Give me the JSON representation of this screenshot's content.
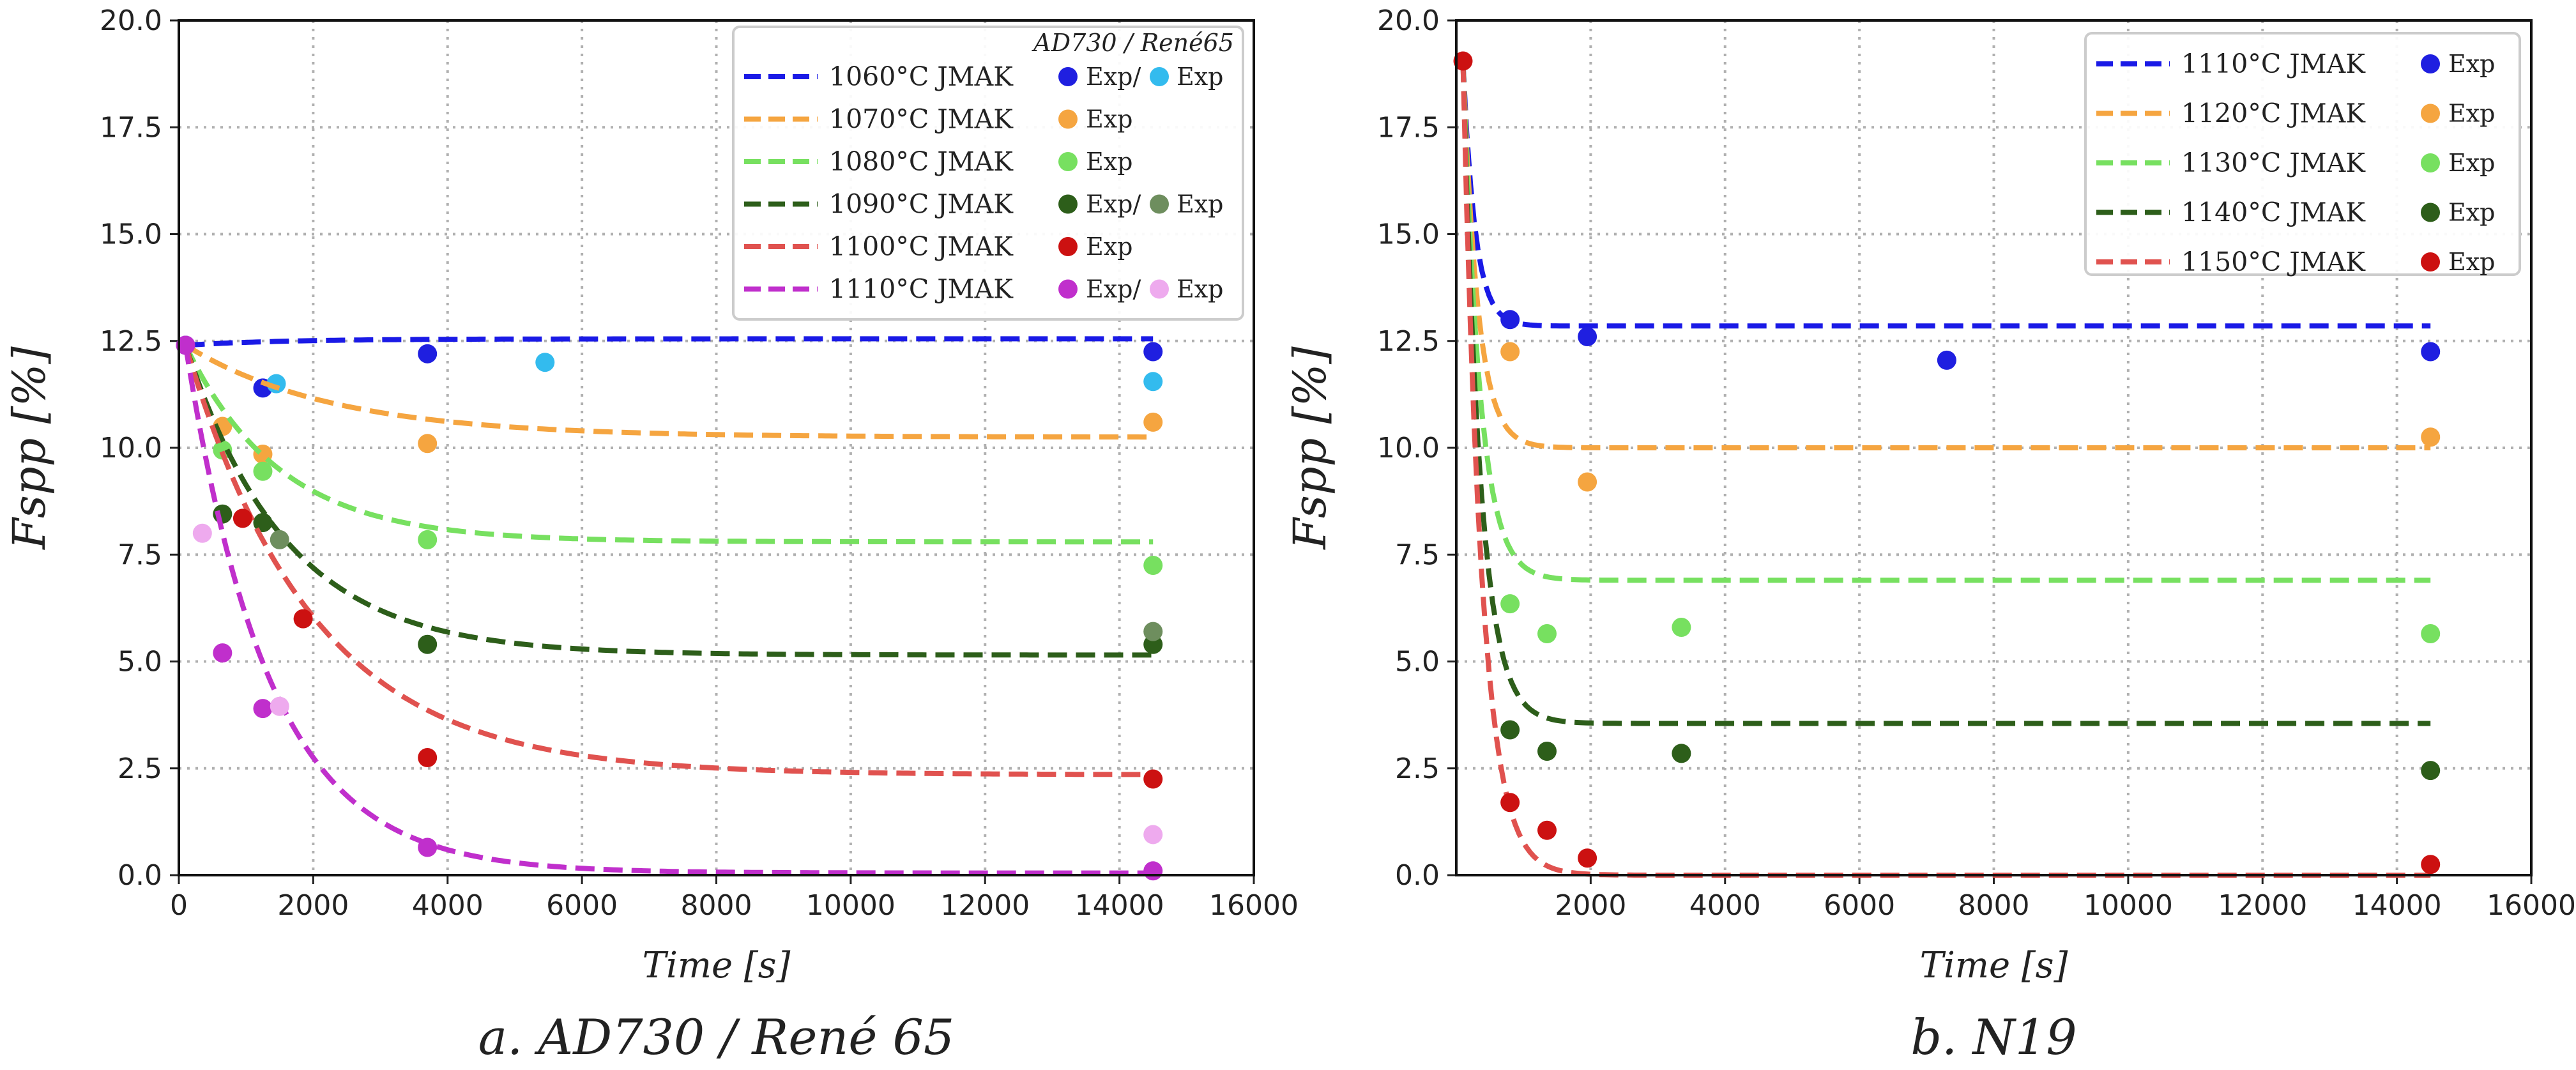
{
  "chart_data": [
    {
      "type": "line",
      "caption": "a. AD730 / René 65",
      "xlabel": "Time [s]",
      "ylabel": "Fspp [%]",
      "xlim": [
        0,
        16000
      ],
      "ylim": [
        0,
        20
      ],
      "xticks": [
        "0",
        "2000",
        "4000",
        "6000",
        "8000",
        "10000",
        "12000",
        "14000",
        "16000"
      ],
      "yticks": [
        "0.0",
        "2.5",
        "5.0",
        "7.5",
        "10.0",
        "12.5",
        "15.0",
        "17.5",
        "20.0"
      ],
      "grid": true,
      "legend_position": "top-right",
      "legend_header": "AD730 / René65",
      "series": [
        {
          "name": "1060°C JMAK",
          "exp_label": "Exp/",
          "exp2_label": "Exp",
          "color": "#1a1ae6",
          "exp_color": "#1f1fe0",
          "exp2_color": "#33bbee",
          "jmak": {
            "x0": 100,
            "x_end": 14500,
            "y0": 12.4,
            "y_inf": 12.55,
            "tau": 1500
          },
          "exp": [
            [
              100,
              12.4
            ],
            [
              1250,
              11.4
            ],
            [
              3700,
              12.2
            ],
            [
              14500,
              12.25
            ]
          ],
          "exp2": [
            [
              1450,
              11.5
            ],
            [
              5450,
              12.0
            ],
            [
              14500,
              11.55
            ]
          ]
        },
        {
          "name": "1070°C JMAK",
          "exp_label": "Exp",
          "color": "#f5a540",
          "exp_color": "#f5a540",
          "jmak": {
            "x0": 100,
            "x_end": 14500,
            "y0": 12.4,
            "y_inf": 10.25,
            "tau": 2200
          },
          "exp": [
            [
              650,
              10.5
            ],
            [
              1250,
              9.85
            ],
            [
              3700,
              10.1
            ],
            [
              14500,
              10.6
            ]
          ]
        },
        {
          "name": "1080°C JMAK",
          "exp_label": "Exp",
          "color": "#77e060",
          "exp_color": "#77e060",
          "jmak": {
            "x0": 100,
            "x_end": 14500,
            "y0": 12.4,
            "y_inf": 7.8,
            "tau": 1400
          },
          "exp": [
            [
              650,
              9.95
            ],
            [
              1250,
              9.45
            ],
            [
              3700,
              7.85
            ],
            [
              14500,
              7.25
            ]
          ]
        },
        {
          "name": "1090°C JMAK",
          "exp_label": "Exp/",
          "exp2_label": "Exp",
          "color": "#2d5e1a",
          "exp_color": "#2d5e1a",
          "exp2_color": "#6e8e5e",
          "jmak": {
            "x0": 100,
            "x_end": 14500,
            "y0": 12.4,
            "y_inf": 5.15,
            "tau": 1500
          },
          "exp": [
            [
              650,
              8.45
            ],
            [
              1250,
              8.25
            ],
            [
              3700,
              5.4
            ],
            [
              14500,
              5.4
            ]
          ],
          "exp2": [
            [
              1500,
              7.85
            ],
            [
              14500,
              5.7
            ]
          ]
        },
        {
          "name": "1100°C JMAK",
          "exp_label": "Exp",
          "color": "#e0524f",
          "exp_color": "#cc1111",
          "jmak": {
            "x0": 100,
            "x_end": 14500,
            "y0": 12.4,
            "y_inf": 2.35,
            "tau": 1900
          },
          "exp": [
            [
              950,
              8.35
            ],
            [
              1850,
              6.0
            ],
            [
              3700,
              2.75
            ],
            [
              14500,
              2.25
            ]
          ]
        },
        {
          "name": "1110°C JMAK",
          "exp_label": "Exp/",
          "exp2_label": "Exp",
          "color": "#c02fcc",
          "exp_color": "#c02fcc",
          "exp2_color": "#eeaaee",
          "jmak": {
            "x0": 100,
            "x_end": 14500,
            "y0": 12.4,
            "y_inf": 0.05,
            "tau": 1250
          },
          "exp": [
            [
              100,
              12.4
            ],
            [
              650,
              5.2
            ],
            [
              1250,
              3.9
            ],
            [
              3700,
              0.65
            ],
            [
              14500,
              0.1
            ]
          ],
          "exp2": [
            [
              350,
              8.0
            ],
            [
              1500,
              3.95
            ],
            [
              14500,
              0.95
            ]
          ]
        }
      ]
    },
    {
      "type": "line",
      "caption": "b. N19",
      "xlabel": "Time [s]",
      "ylabel": "Fspp [%]",
      "xlim": [
        0,
        16000
      ],
      "ylim": [
        0,
        20
      ],
      "xticks": [
        "2000",
        "4000",
        "6000",
        "8000",
        "10000",
        "12000",
        "14000",
        "16000"
      ],
      "yticks": [
        "0.0",
        "2.5",
        "5.0",
        "7.5",
        "10.0",
        "12.5",
        "15.0",
        "17.5",
        "20.0"
      ],
      "grid": true,
      "legend_position": "top-right",
      "series": [
        {
          "name": "1110°C JMAK",
          "exp_label": "Exp",
          "color": "#1a1ae6",
          "exp_color": "#1f1fe0",
          "jmak": {
            "x0": 100,
            "x_end": 14500,
            "y0": 19.0,
            "y_inf": 12.85,
            "tau": 180
          },
          "exp": [
            [
              800,
              13.0
            ],
            [
              1950,
              12.6
            ],
            [
              7300,
              12.05
            ],
            [
              14500,
              12.25
            ]
          ]
        },
        {
          "name": "1120°C JMAK",
          "exp_label": "Exp",
          "color": "#f5a540",
          "exp_color": "#f5a540",
          "jmak": {
            "x0": 100,
            "x_end": 14500,
            "y0": 19.0,
            "y_inf": 10.0,
            "tau": 220
          },
          "exp": [
            [
              800,
              12.25
            ],
            [
              1950,
              9.2
            ],
            [
              14500,
              10.25
            ]
          ]
        },
        {
          "name": "1130°C JMAK",
          "exp_label": "Exp",
          "color": "#77e060",
          "exp_color": "#77e060",
          "jmak": {
            "x0": 100,
            "x_end": 14500,
            "y0": 19.0,
            "y_inf": 6.9,
            "tau": 250
          },
          "exp": [
            [
              800,
              6.35
            ],
            [
              1350,
              5.65
            ],
            [
              3350,
              5.8
            ],
            [
              14500,
              5.65
            ]
          ]
        },
        {
          "name": "1140°C JMAK",
          "exp_label": "Exp",
          "color": "#2d5e1a",
          "exp_color": "#2d5e1a",
          "jmak": {
            "x0": 100,
            "x_end": 14500,
            "y0": 19.0,
            "y_inf": 3.55,
            "tau": 260
          },
          "exp": [
            [
              800,
              3.4
            ],
            [
              1350,
              2.9
            ],
            [
              3350,
              2.85
            ],
            [
              14500,
              2.45
            ]
          ]
        },
        {
          "name": "1150°C JMAK",
          "exp_label": "Exp",
          "color": "#e0524f",
          "exp_color": "#cc1111",
          "jmak": {
            "x0": 100,
            "x_end": 14500,
            "y0": 19.0,
            "y_inf": 0.0,
            "tau": 280
          },
          "exp": [
            [
              100,
              19.05
            ],
            [
              800,
              1.7
            ],
            [
              1350,
              1.05
            ],
            [
              1950,
              0.4
            ],
            [
              14500,
              0.25
            ]
          ]
        }
      ]
    }
  ]
}
